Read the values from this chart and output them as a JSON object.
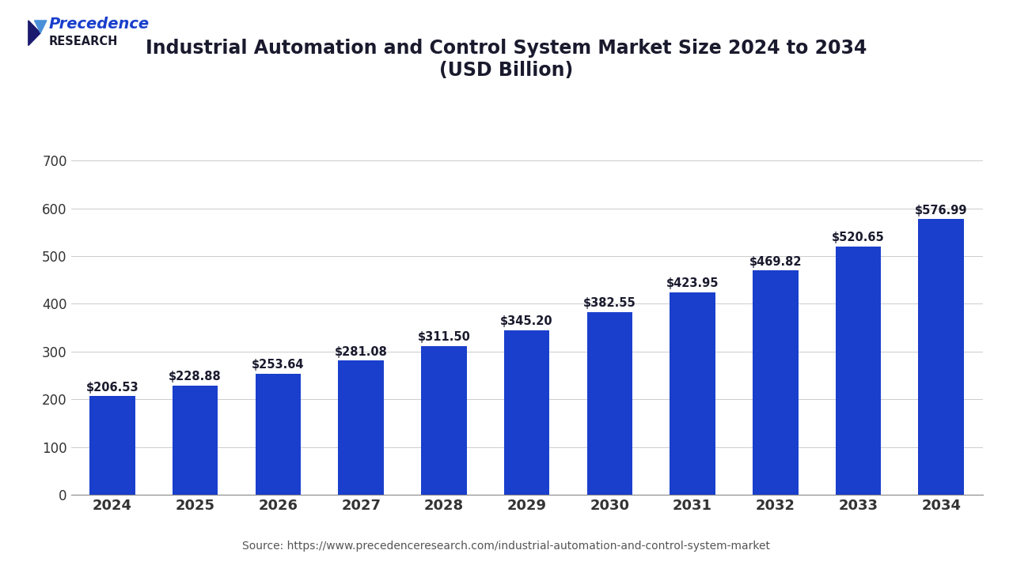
{
  "title_line1": "Industrial Automation and Control System Market Size 2024 to 2034",
  "title_line2": "(USD Billion)",
  "years": [
    2024,
    2025,
    2026,
    2027,
    2028,
    2029,
    2030,
    2031,
    2032,
    2033,
    2034
  ],
  "values": [
    206.53,
    228.88,
    253.64,
    281.08,
    311.5,
    345.2,
    382.55,
    423.95,
    469.82,
    520.65,
    576.99
  ],
  "bar_color": "#1a3fcc",
  "bar_labels": [
    "$206.53",
    "$228.88",
    "$253.64",
    "$281.08",
    "$311.50",
    "$345.20",
    "$382.55",
    "$423.95",
    "$469.82",
    "$520.65",
    "$576.99"
  ],
  "ylim": [
    0,
    750
  ],
  "yticks": [
    0,
    100,
    200,
    300,
    400,
    500,
    600,
    700
  ],
  "source_text": "Source: https://www.precedenceresearch.com/industrial-automation-and-control-system-market",
  "bg_color": "#ffffff",
  "plot_bg_color": "#ffffff",
  "title_color": "#1a1a2e",
  "tick_color": "#333333",
  "bar_label_fontsize": 10.5,
  "title_fontsize": 17,
  "xtick_fontsize": 13,
  "ytick_fontsize": 12,
  "source_fontsize": 10,
  "separator_color": "#1a1a2e",
  "logo_precedence_color": "#1a3fcc",
  "logo_research_color": "#1a1a2e",
  "grid_color": "#cccccc"
}
